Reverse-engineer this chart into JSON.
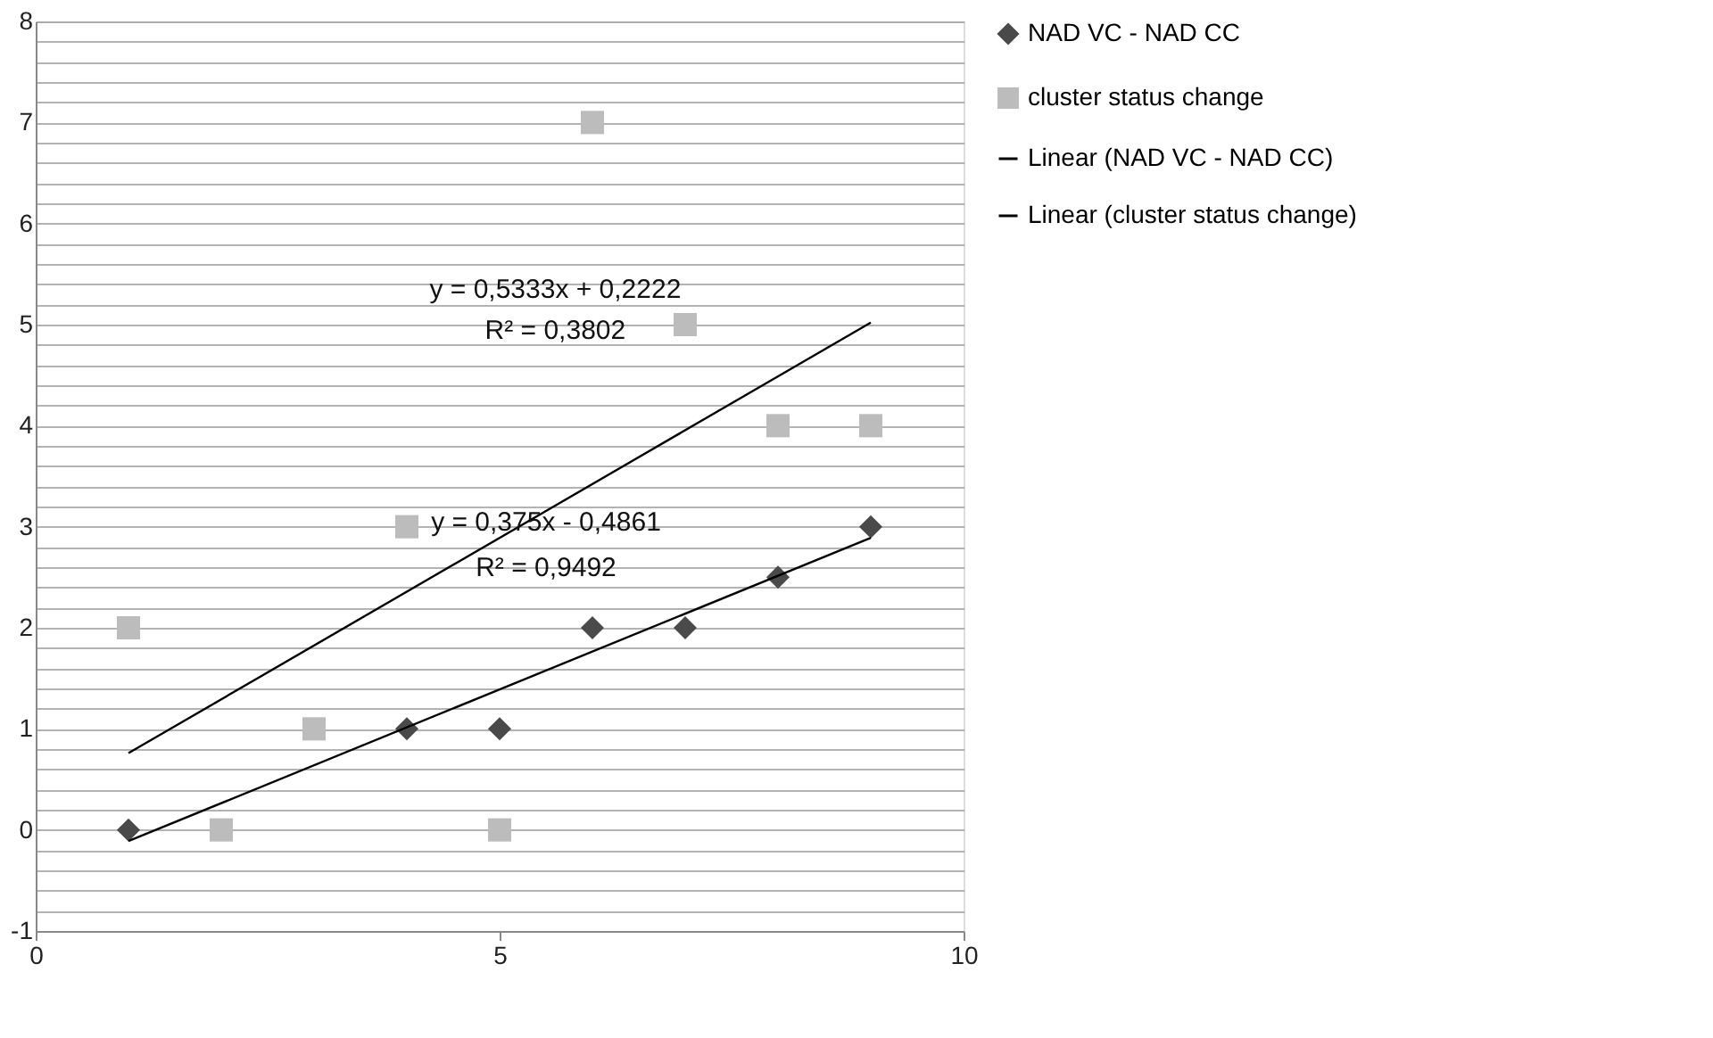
{
  "chart_data": {
    "type": "scatter",
    "xlim": [
      0,
      10
    ],
    "xticks": [
      0,
      5,
      10
    ],
    "ylim": [
      -1,
      8
    ],
    "yticks": [
      -1,
      {
        "value": -0.8,
        "label": null
      },
      {
        "value": -0.6,
        "label": null
      },
      {
        "value": -0.4,
        "label": null
      },
      {
        "value": -0.2,
        "label": null
      },
      0,
      {
        "value": 0.2,
        "label": null
      },
      {
        "value": 0.4,
        "label": null
      },
      {
        "value": 0.6,
        "label": null
      },
      {
        "value": 0.8,
        "label": null
      },
      1,
      {
        "value": 1.2,
        "label": null
      },
      {
        "value": 1.4,
        "label": null
      },
      {
        "value": 1.6,
        "label": null
      },
      {
        "value": 1.8,
        "label": null
      },
      2,
      {
        "value": 2.2,
        "label": null
      },
      {
        "value": 2.4,
        "label": null
      },
      {
        "value": 2.6,
        "label": null
      },
      {
        "value": 2.8,
        "label": null
      },
      3,
      {
        "value": 3.2,
        "label": null
      },
      {
        "value": 3.4,
        "label": null
      },
      {
        "value": 3.6,
        "label": null
      },
      {
        "value": 3.8,
        "label": null
      },
      4,
      {
        "value": 4.2,
        "label": null
      },
      {
        "value": 4.4,
        "label": null
      },
      {
        "value": 4.6,
        "label": null
      },
      {
        "value": 4.8,
        "label": null
      },
      5,
      {
        "value": 5.2,
        "label": null
      },
      {
        "value": 5.4,
        "label": null
      },
      {
        "value": 5.6,
        "label": null
      },
      {
        "value": 5.8,
        "label": null
      },
      6,
      {
        "value": 6.2,
        "label": null
      },
      {
        "value": 6.4,
        "label": null
      },
      {
        "value": 6.6,
        "label": null
      },
      {
        "value": 6.8,
        "label": null
      },
      7,
      {
        "value": 7.2,
        "label": null
      },
      {
        "value": 7.4,
        "label": null
      },
      {
        "value": 7.6,
        "label": null
      },
      {
        "value": 7.8,
        "label": null
      },
      8
    ],
    "grid": "y",
    "legend": "right",
    "series": [
      {
        "name": "NAD VC - NAD CC",
        "type": "scatter",
        "marker": "diamond",
        "color": "#4a4a4a",
        "x": [
          1,
          4,
          5,
          6,
          7,
          8,
          9
        ],
        "values": [
          0,
          1,
          1,
          2,
          2,
          2.5,
          3
        ]
      },
      {
        "name": "cluster status change",
        "type": "scatter",
        "marker": "square",
        "color": "#bcbcbc",
        "x": [
          1,
          2,
          3,
          4,
          5,
          6,
          7,
          8,
          9
        ],
        "values": [
          2,
          0,
          1,
          3,
          0,
          7,
          5,
          4,
          4
        ]
      },
      {
        "name": "Linear (NAD VC - NAD CC)",
        "type": "line",
        "marker": "none",
        "line_style": "solid",
        "color": "#000000",
        "x": [
          1,
          9
        ],
        "values": [
          -0.11,
          2.89
        ]
      },
      {
        "name": "Linear (cluster status change)",
        "type": "line",
        "marker": "none",
        "line_style": "solid",
        "color": "#000000",
        "x": [
          1,
          9
        ],
        "values": [
          0.76,
          5.02
        ]
      }
    ],
    "annotations": [
      "y = 0,5333x + 0,2222",
      "R² = 0,3802",
      "y = 0,375x - 0,4861",
      "R² = 0,9492"
    ]
  }
}
